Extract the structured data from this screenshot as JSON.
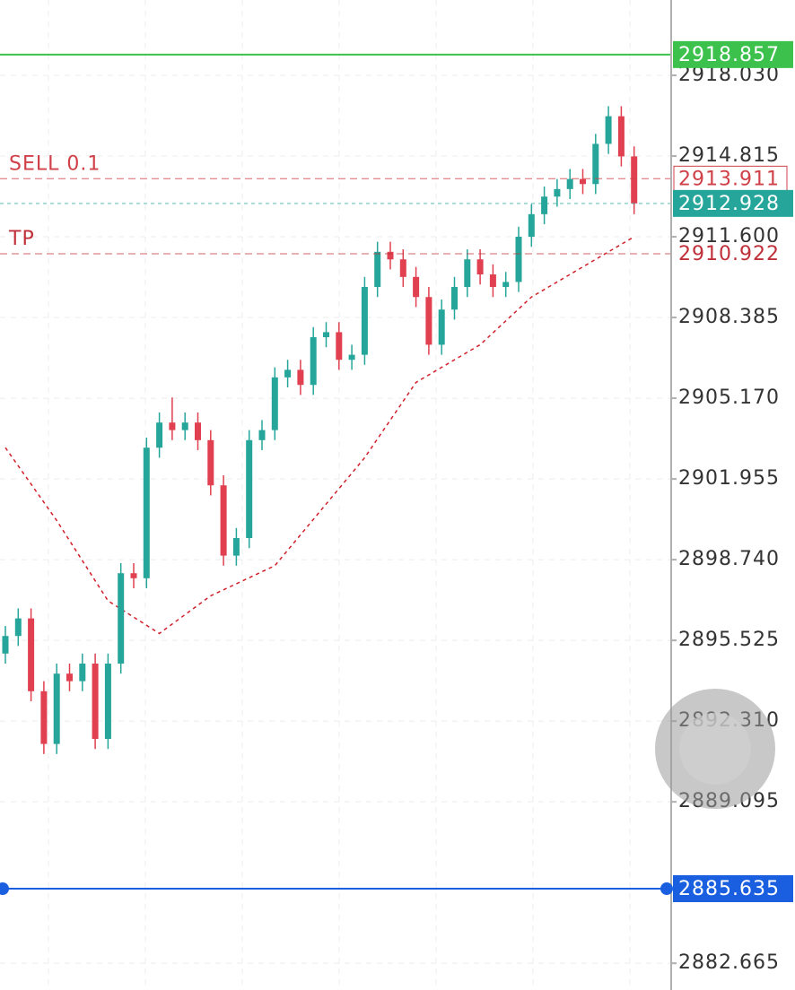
{
  "chart_data": {
    "type": "candlestick",
    "up_color": "#26a69a",
    "down_color": "#e0404f",
    "ylim": [
      2881.6,
      2921.03
    ],
    "yticks": [
      {
        "value": 2918.03,
        "label": "2918.030"
      },
      2914.815,
      {
        "value": 2911.6,
        "label": "2911.600"
      },
      2908.385,
      {
        "value": 2905.17,
        "label": "2905.170"
      },
      2901.955,
      {
        "value": 2898.74,
        "label": "2898.740"
      },
      2895.525,
      {
        "value": 2892.31,
        "label": "2892.310"
      },
      2889.095,
      2882.665
    ],
    "grid": true,
    "open": [
      2895.0,
      2895.7,
      2896.4,
      2893.5,
      2891.4,
      2894.2,
      2893.9,
      2894.6,
      2891.6,
      2894.6,
      2898.2,
      2898.0,
      2903.2,
      2904.2,
      2903.9,
      2904.2,
      2903.5,
      2901.7,
      2898.9,
      2899.6,
      2903.5,
      2903.9,
      2906.0,
      2906.3,
      2905.7,
      2907.6,
      2907.8,
      2906.7,
      2906.9,
      2909.6,
      2911.0,
      2910.7,
      2910.0,
      2909.2,
      2907.3,
      2908.7,
      2909.6,
      2910.7,
      2910.1,
      2909.6,
      2909.8,
      2911.6,
      2912.5,
      2913.2,
      2913.5,
      2913.9,
      2913.7,
      2915.3,
      2916.4,
      2914.8
    ],
    "high": [
      2896.1,
      2896.8,
      2896.8,
      2893.9,
      2894.6,
      2894.6,
      2895.0,
      2895.0,
      2895.0,
      2898.6,
      2898.6,
      2903.6,
      2904.6,
      2905.2,
      2904.6,
      2904.6,
      2903.9,
      2902.1,
      2900.0,
      2903.9,
      2904.3,
      2906.4,
      2906.7,
      2906.7,
      2908.0,
      2908.2,
      2908.2,
      2907.3,
      2910.0,
      2911.4,
      2911.4,
      2911.1,
      2910.4,
      2909.6,
      2909.1,
      2910.0,
      2911.1,
      2911.1,
      2910.5,
      2910.2,
      2912.0,
      2912.9,
      2913.6,
      2913.9,
      2914.3,
      2914.3,
      2915.7,
      2916.8,
      2916.8,
      2915.2
    ],
    "low": [
      2894.6,
      2895.3,
      2893.1,
      2891.0,
      2891.0,
      2893.5,
      2893.5,
      2891.2,
      2891.2,
      2894.2,
      2897.6,
      2897.6,
      2902.8,
      2903.5,
      2903.5,
      2903.1,
      2901.3,
      2898.5,
      2898.5,
      2899.2,
      2903.1,
      2903.5,
      2905.6,
      2905.3,
      2905.3,
      2907.2,
      2906.3,
      2906.3,
      2906.5,
      2909.2,
      2910.3,
      2909.6,
      2908.8,
      2906.9,
      2906.9,
      2908.3,
      2909.2,
      2909.7,
      2909.2,
      2909.2,
      2909.4,
      2911.2,
      2912.1,
      2912.8,
      2913.1,
      2913.3,
      2913.3,
      2914.9,
      2914.4,
      2912.5
    ],
    "close": [
      2895.7,
      2896.4,
      2893.5,
      2891.4,
      2894.2,
      2893.9,
      2894.6,
      2891.6,
      2894.6,
      2898.2,
      2898.0,
      2903.2,
      2904.2,
      2903.9,
      2904.2,
      2903.5,
      2901.7,
      2898.9,
      2899.6,
      2903.5,
      2903.9,
      2906.0,
      2906.3,
      2905.7,
      2907.6,
      2907.8,
      2906.7,
      2906.9,
      2909.6,
      2911.0,
      2910.7,
      2910.0,
      2909.2,
      2907.3,
      2908.7,
      2909.6,
      2910.7,
      2910.1,
      2909.6,
      2909.8,
      2911.6,
      2912.5,
      2913.2,
      2913.5,
      2913.9,
      2913.7,
      2915.3,
      2916.4,
      2914.8,
      2912.928
    ],
    "ma": {
      "color": "#d0202a",
      "x": [
        0,
        4,
        8,
        12,
        16,
        21,
        28,
        32,
        37,
        41,
        49
      ],
      "values": [
        2903.2,
        2900.3,
        2897.1,
        2895.8,
        2897.3,
        2898.5,
        2902.8,
        2905.8,
        2907.3,
        2909.2,
        2911.6
      ]
    },
    "price_lines": [
      {
        "value": 2918.857,
        "color": "#3cc14d",
        "style": "solid",
        "tag": "fill"
      },
      {
        "value": 2913.911,
        "color": "#d04048",
        "style": "dashed",
        "tag": "outline",
        "text": "SELL 0.1"
      },
      {
        "value": 2912.928,
        "color": "#26a69a",
        "style": "dotted",
        "tag": "fill"
      },
      {
        "value": 2910.922,
        "color": "#c0303a",
        "style": "dashed",
        "tag": "plain",
        "text": "TP"
      },
      {
        "value": 2885.635,
        "color": "#1a5fe0",
        "style": "solid",
        "tag": "fill"
      }
    ]
  }
}
